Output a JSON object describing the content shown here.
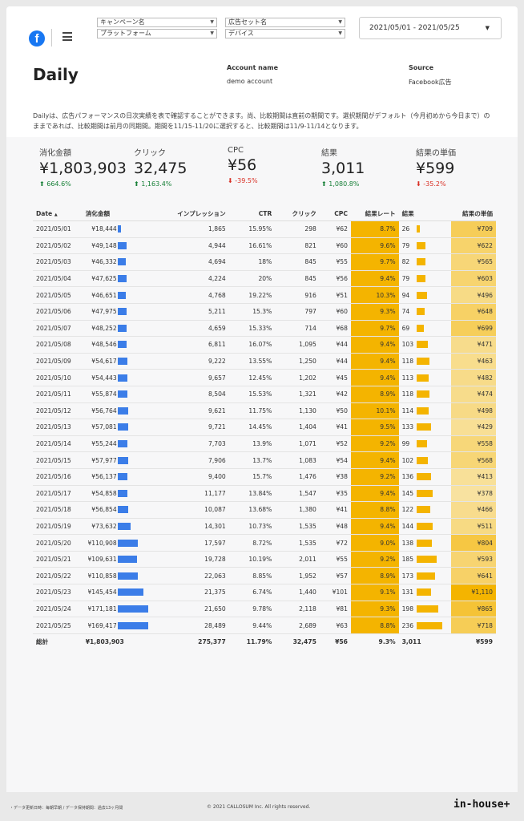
{
  "header": {
    "filters": [
      {
        "label": "キャンペーン名"
      },
      {
        "label": "プラットフォーム"
      },
      {
        "label": "広告セット名"
      },
      {
        "label": "デバイス"
      }
    ],
    "date_range": "2021/05/01 - 2021/05/25"
  },
  "page": {
    "title": "Daily",
    "account_label": "Account name",
    "account_value": "demo account",
    "source_label": "Source",
    "source_value": "Facebook広告",
    "description": "Dailyは、広告パフォーマンスの日次実績を表で確認することができます。尚、比較期間は直前の期間です。選択期間がデフォルト（今月初めから今日まで）のままであれば、比較期間は前月の同期間。期間を11/15-11/20に選択すると、比較期間は11/9-11/14となります。"
  },
  "kpis": [
    {
      "label": "消化金額",
      "value": "¥1,803,903",
      "delta": "664.6%",
      "dir": "up"
    },
    {
      "label": "クリック",
      "value": "32,475",
      "delta": "1,163.4%",
      "dir": "up"
    },
    {
      "label": "CPC",
      "value": "¥56",
      "delta": "-39.5%",
      "dir": "down"
    },
    {
      "label": "結果",
      "value": "3,011",
      "delta": "1,080.8%",
      "dir": "up"
    },
    {
      "label": "結果の単価",
      "value": "¥599",
      "delta": "-35.2%",
      "dir": "down"
    }
  ],
  "table": {
    "headers": [
      "Date",
      "消化金額",
      "インプレッション",
      "CTR",
      "クリック",
      "CPC",
      "結果レート",
      "結果",
      "結果の単価"
    ],
    "sort_indicator": "▲",
    "rows": [
      {
        "date": "2021/05/01",
        "spend": "¥18,444",
        "spend_v": 18444,
        "imp": "1,865",
        "ctr": "15.95%",
        "clicks": "298",
        "cpc": "¥62",
        "rate": "8.7%",
        "results": "26",
        "results_v": 26,
        "cpr": "¥709",
        "cpr_v": 709
      },
      {
        "date": "2021/05/02",
        "spend": "¥49,148",
        "spend_v": 49148,
        "imp": "4,944",
        "ctr": "16.61%",
        "clicks": "821",
        "cpc": "¥60",
        "rate": "9.6%",
        "results": "79",
        "results_v": 79,
        "cpr": "¥622",
        "cpr_v": 622
      },
      {
        "date": "2021/05/03",
        "spend": "¥46,332",
        "spend_v": 46332,
        "imp": "4,694",
        "ctr": "18%",
        "clicks": "845",
        "cpc": "¥55",
        "rate": "9.7%",
        "results": "82",
        "results_v": 82,
        "cpr": "¥565",
        "cpr_v": 565
      },
      {
        "date": "2021/05/04",
        "spend": "¥47,625",
        "spend_v": 47625,
        "imp": "4,224",
        "ctr": "20%",
        "clicks": "845",
        "cpc": "¥56",
        "rate": "9.4%",
        "results": "79",
        "results_v": 79,
        "cpr": "¥603",
        "cpr_v": 603
      },
      {
        "date": "2021/05/05",
        "spend": "¥46,651",
        "spend_v": 46651,
        "imp": "4,768",
        "ctr": "19.22%",
        "clicks": "916",
        "cpc": "¥51",
        "rate": "10.3%",
        "results": "94",
        "results_v": 94,
        "cpr": "¥496",
        "cpr_v": 496
      },
      {
        "date": "2021/05/06",
        "spend": "¥47,975",
        "spend_v": 47975,
        "imp": "5,211",
        "ctr": "15.3%",
        "clicks": "797",
        "cpc": "¥60",
        "rate": "9.3%",
        "results": "74",
        "results_v": 74,
        "cpr": "¥648",
        "cpr_v": 648
      },
      {
        "date": "2021/05/07",
        "spend": "¥48,252",
        "spend_v": 48252,
        "imp": "4,659",
        "ctr": "15.33%",
        "clicks": "714",
        "cpc": "¥68",
        "rate": "9.7%",
        "results": "69",
        "results_v": 69,
        "cpr": "¥699",
        "cpr_v": 699
      },
      {
        "date": "2021/05/08",
        "spend": "¥48,546",
        "spend_v": 48546,
        "imp": "6,811",
        "ctr": "16.07%",
        "clicks": "1,095",
        "cpc": "¥44",
        "rate": "9.4%",
        "results": "103",
        "results_v": 103,
        "cpr": "¥471",
        "cpr_v": 471
      },
      {
        "date": "2021/05/09",
        "spend": "¥54,617",
        "spend_v": 54617,
        "imp": "9,222",
        "ctr": "13.55%",
        "clicks": "1,250",
        "cpc": "¥44",
        "rate": "9.4%",
        "results": "118",
        "results_v": 118,
        "cpr": "¥463",
        "cpr_v": 463
      },
      {
        "date": "2021/05/10",
        "spend": "¥54,443",
        "spend_v": 54443,
        "imp": "9,657",
        "ctr": "12.45%",
        "clicks": "1,202",
        "cpc": "¥45",
        "rate": "9.4%",
        "results": "113",
        "results_v": 113,
        "cpr": "¥482",
        "cpr_v": 482
      },
      {
        "date": "2021/05/11",
        "spend": "¥55,874",
        "spend_v": 55874,
        "imp": "8,504",
        "ctr": "15.53%",
        "clicks": "1,321",
        "cpc": "¥42",
        "rate": "8.9%",
        "results": "118",
        "results_v": 118,
        "cpr": "¥474",
        "cpr_v": 474
      },
      {
        "date": "2021/05/12",
        "spend": "¥56,764",
        "spend_v": 56764,
        "imp": "9,621",
        "ctr": "11.75%",
        "clicks": "1,130",
        "cpc": "¥50",
        "rate": "10.1%",
        "results": "114",
        "results_v": 114,
        "cpr": "¥498",
        "cpr_v": 498
      },
      {
        "date": "2021/05/13",
        "spend": "¥57,081",
        "spend_v": 57081,
        "imp": "9,721",
        "ctr": "14.45%",
        "clicks": "1,404",
        "cpc": "¥41",
        "rate": "9.5%",
        "results": "133",
        "results_v": 133,
        "cpr": "¥429",
        "cpr_v": 429
      },
      {
        "date": "2021/05/14",
        "spend": "¥55,244",
        "spend_v": 55244,
        "imp": "7,703",
        "ctr": "13.9%",
        "clicks": "1,071",
        "cpc": "¥52",
        "rate": "9.2%",
        "results": "99",
        "results_v": 99,
        "cpr": "¥558",
        "cpr_v": 558
      },
      {
        "date": "2021/05/15",
        "spend": "¥57,977",
        "spend_v": 57977,
        "imp": "7,906",
        "ctr": "13.7%",
        "clicks": "1,083",
        "cpc": "¥54",
        "rate": "9.4%",
        "results": "102",
        "results_v": 102,
        "cpr": "¥568",
        "cpr_v": 568
      },
      {
        "date": "2021/05/16",
        "spend": "¥56,137",
        "spend_v": 56137,
        "imp": "9,400",
        "ctr": "15.7%",
        "clicks": "1,476",
        "cpc": "¥38",
        "rate": "9.2%",
        "results": "136",
        "results_v": 136,
        "cpr": "¥413",
        "cpr_v": 413
      },
      {
        "date": "2021/05/17",
        "spend": "¥54,858",
        "spend_v": 54858,
        "imp": "11,177",
        "ctr": "13.84%",
        "clicks": "1,547",
        "cpc": "¥35",
        "rate": "9.4%",
        "results": "145",
        "results_v": 145,
        "cpr": "¥378",
        "cpr_v": 378
      },
      {
        "date": "2021/05/18",
        "spend": "¥56,854",
        "spend_v": 56854,
        "imp": "10,087",
        "ctr": "13.68%",
        "clicks": "1,380",
        "cpc": "¥41",
        "rate": "8.8%",
        "results": "122",
        "results_v": 122,
        "cpr": "¥466",
        "cpr_v": 466
      },
      {
        "date": "2021/05/19",
        "spend": "¥73,632",
        "spend_v": 73632,
        "imp": "14,301",
        "ctr": "10.73%",
        "clicks": "1,535",
        "cpc": "¥48",
        "rate": "9.4%",
        "results": "144",
        "results_v": 144,
        "cpr": "¥511",
        "cpr_v": 511
      },
      {
        "date": "2021/05/20",
        "spend": "¥110,908",
        "spend_v": 110908,
        "imp": "17,597",
        "ctr": "8.72%",
        "clicks": "1,535",
        "cpc": "¥72",
        "rate": "9.0%",
        "results": "138",
        "results_v": 138,
        "cpr": "¥804",
        "cpr_v": 804
      },
      {
        "date": "2021/05/21",
        "spend": "¥109,631",
        "spend_v": 109631,
        "imp": "19,728",
        "ctr": "10.19%",
        "clicks": "2,011",
        "cpc": "¥55",
        "rate": "9.2%",
        "results": "185",
        "results_v": 185,
        "cpr": "¥593",
        "cpr_v": 593
      },
      {
        "date": "2021/05/22",
        "spend": "¥110,858",
        "spend_v": 110858,
        "imp": "22,063",
        "ctr": "8.85%",
        "clicks": "1,952",
        "cpc": "¥57",
        "rate": "8.9%",
        "results": "173",
        "results_v": 173,
        "cpr": "¥641",
        "cpr_v": 641
      },
      {
        "date": "2021/05/23",
        "spend": "¥145,454",
        "spend_v": 145454,
        "imp": "21,375",
        "ctr": "6.74%",
        "clicks": "1,440",
        "cpc": "¥101",
        "rate": "9.1%",
        "results": "131",
        "results_v": 131,
        "cpr": "¥1,110",
        "cpr_v": 1110
      },
      {
        "date": "2021/05/24",
        "spend": "¥171,181",
        "spend_v": 171181,
        "imp": "21,650",
        "ctr": "9.78%",
        "clicks": "2,118",
        "cpc": "¥81",
        "rate": "9.3%",
        "results": "198",
        "results_v": 198,
        "cpr": "¥865",
        "cpr_v": 865
      },
      {
        "date": "2021/05/25",
        "spend": "¥169,417",
        "spend_v": 169417,
        "imp": "28,489",
        "ctr": "9.44%",
        "clicks": "2,689",
        "cpc": "¥63",
        "rate": "8.8%",
        "results": "236",
        "results_v": 236,
        "cpr": "¥718",
        "cpr_v": 718
      }
    ],
    "totals": {
      "label": "総計",
      "spend": "¥1,803,903",
      "imp": "275,377",
      "ctr": "11.79%",
      "clicks": "32,475",
      "cpc": "¥56",
      "rate": "9.3%",
      "results": "3,011",
      "cpr": "¥599"
    }
  },
  "footer": {
    "note": "・データ更新日時：毎朝早朝 / データ保持期間：過去13ヶ月間",
    "copyright": "© 2021 CALLOSUM Inc. All rights reserved.",
    "brand": "in-house+"
  },
  "colors": {
    "bar_blue": "#3b7de8",
    "rate_yellow": "#f4b400",
    "up_green": "#188038",
    "down_red": "#d93025",
    "facebook_blue": "#1877f2"
  }
}
